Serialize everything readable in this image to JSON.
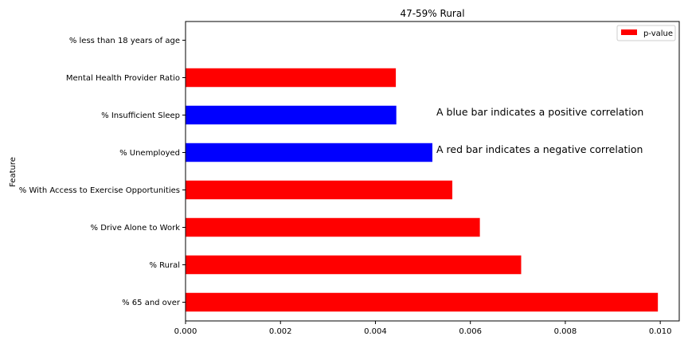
{
  "chart_data": {
    "type": "bar",
    "orientation": "horizontal",
    "title": "47-59% Rural",
    "xlabel": "",
    "ylabel": "Feature",
    "xlim": [
      0,
      0.0104
    ],
    "xticks": [
      0,
      0.002,
      0.004,
      0.006,
      0.008,
      0.01
    ],
    "xtick_labels": [
      "0.000",
      "0.002",
      "0.004",
      "0.006",
      "0.008",
      "0.010"
    ],
    "grid": false,
    "categories": [
      "% 65 and over",
      "% Rural",
      "% Drive Alone to Work",
      "% With Access to Exercise Opportunities",
      "% Unemployed",
      "% Insufficient Sleep",
      "Mental Health Provider Ratio",
      "% less than 18 years of age"
    ],
    "series": [
      {
        "name": "p-value",
        "values": [
          0.00995,
          0.00707,
          0.0062,
          0.00562,
          0.0052,
          0.00444,
          0.00443,
          0.0
        ],
        "colors": [
          "#ff0000",
          "#ff0000",
          "#ff0000",
          "#ff0000",
          "#0000ff",
          "#0000ff",
          "#ff0000",
          "#ff0000"
        ]
      }
    ],
    "legend": {
      "entries": [
        "p-value"
      ],
      "placement": "top-right",
      "swatch_color": "#ff0000"
    },
    "annotations": [
      "A blue bar indicates a positive correlation",
      "A red bar indicates a negative correlation"
    ]
  }
}
